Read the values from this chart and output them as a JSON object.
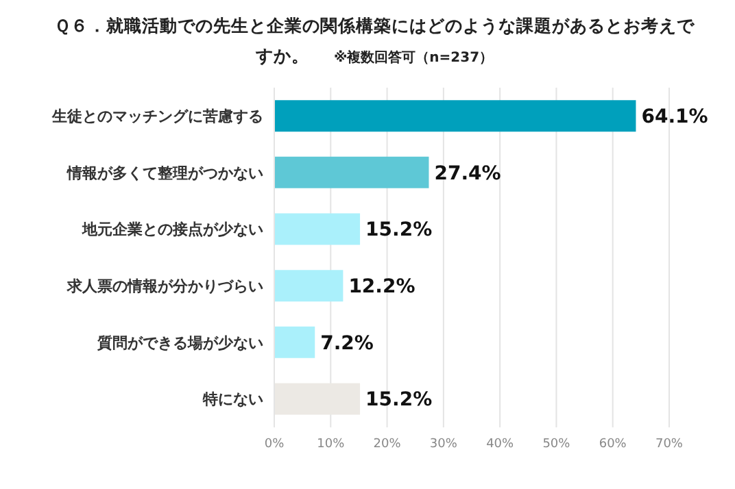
{
  "chart_data": {
    "type": "bar",
    "orientation": "horizontal",
    "title": "Ｑ６．就職活動での先生と企業の関係構築にはどのような課題があるとお考えですか。",
    "subtitle": "※複数回答可（n=237）",
    "categories": [
      "生徒とのマッチングに苦慮する",
      "情報が多くて整理がつかない",
      "地元企業との接点が少ない",
      "求人票の情報が分かりづらい",
      "質問ができる場が少ない",
      "特にない"
    ],
    "values": [
      64.1,
      27.4,
      15.2,
      12.2,
      7.2,
      15.2
    ],
    "colors": [
      "#00a0bc",
      "#5ec8d6",
      "#aaf0fb",
      "#aaf0fb",
      "#aaf0fb",
      "#ece9e4"
    ],
    "value_labels": [
      "64.1%",
      "27.4%",
      "15.2%",
      "12.2%",
      "7.2%",
      "15.2%"
    ],
    "xlim": [
      0,
      70
    ],
    "xticks": [
      {
        "value": 0,
        "label": "0%"
      },
      {
        "value": 10,
        "label": "10%"
      },
      {
        "value": 20,
        "label": "20%"
      },
      {
        "value": 30,
        "label": "30%"
      },
      {
        "value": 40,
        "label": "40%"
      },
      {
        "value": 50,
        "label": "50%"
      },
      {
        "value": 60,
        "label": "60%"
      },
      {
        "value": 70,
        "label": "70%"
      }
    ],
    "grid": "x"
  }
}
